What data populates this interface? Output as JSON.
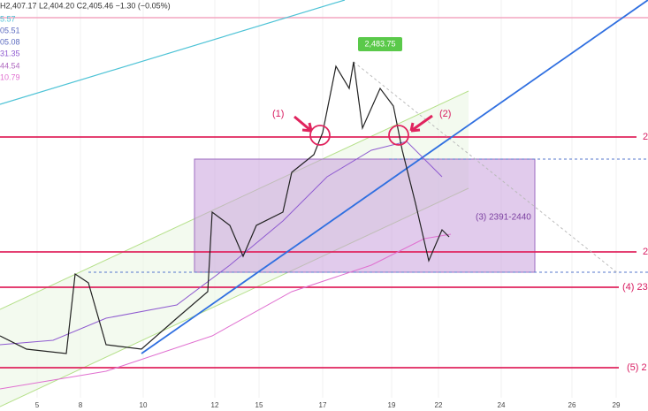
{
  "header": {
    "ohlc": "H2,407.17 L2,404.20 C2,405.46 −1.30 (−0.05%)"
  },
  "legend_values": [
    "5.57",
    "05.51",
    "05.08",
    "31.35",
    "44.54",
    "10.79"
  ],
  "price_tag": "2,483.75",
  "annotations": [
    "(1)",
    "(2)",
    "(3) 2391-2440",
    "(4) 23",
    "(5) 2"
  ],
  "right_labels": [
    "2",
    "2"
  ],
  "x_axis_labels": [
    "5",
    "8",
    "10",
    "12",
    "15",
    "17",
    "19",
    "22",
    "24",
    "26",
    "29"
  ]
}
